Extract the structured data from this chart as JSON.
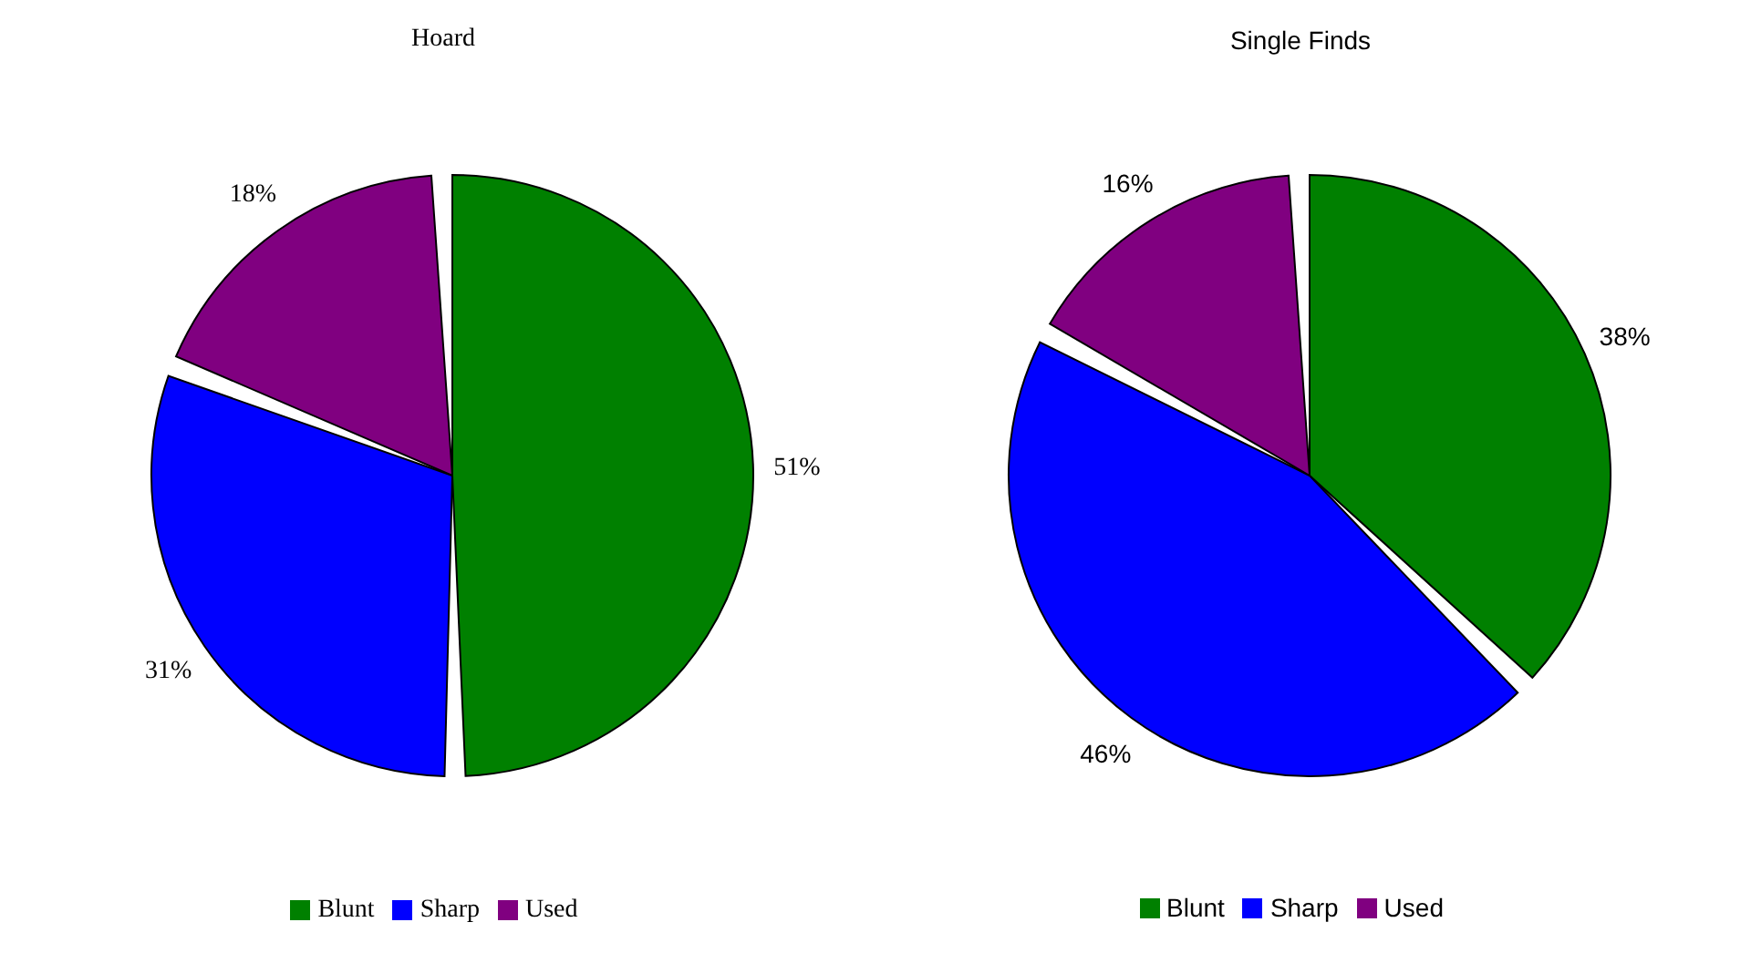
{
  "chart_data": [
    {
      "type": "pie",
      "title": "Hoard",
      "categories": [
        "Blunt",
        "Sharp",
        "Used"
      ],
      "values": [
        51,
        31,
        18
      ],
      "colors": [
        "#008000",
        "#0000ff",
        "#800080"
      ],
      "value_labels": [
        "51%",
        "31%",
        "18%"
      ],
      "legend": "bottom"
    },
    {
      "type": "pie",
      "title": "Single Finds",
      "categories": [
        "Blunt",
        "Sharp",
        "Used"
      ],
      "values": [
        38,
        46,
        16
      ],
      "colors": [
        "#008000",
        "#0000ff",
        "#800080"
      ],
      "value_labels": [
        "38%",
        "46%",
        "16%"
      ],
      "legend": "bottom"
    }
  ]
}
